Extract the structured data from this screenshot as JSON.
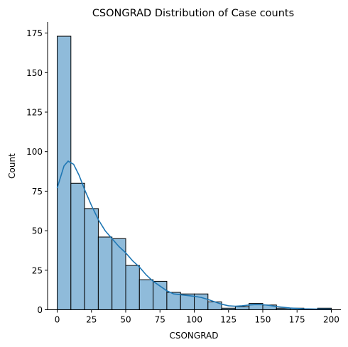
{
  "chart_data": {
    "type": "bar",
    "title": "CSONGRAD Distribution of Case counts",
    "xlabel": "CSONGRAD",
    "ylabel": "Count",
    "xlim": [
      -7,
      207
    ],
    "ylim": [
      0,
      182
    ],
    "xticks": [
      0,
      25,
      50,
      75,
      100,
      125,
      150,
      175,
      200
    ],
    "yticks": [
      0,
      25,
      50,
      75,
      100,
      125,
      150,
      175
    ],
    "bin_edges": [
      0,
      10,
      20,
      30,
      40,
      50,
      60,
      70,
      80,
      90,
      100,
      110,
      120,
      130,
      140,
      150,
      160,
      170,
      180,
      190,
      200
    ],
    "values": [
      173,
      80,
      64,
      46,
      45,
      28,
      19,
      18,
      11,
      10,
      10,
      5,
      1,
      2,
      4,
      3,
      1,
      1,
      0,
      1
    ],
    "kde": {
      "x": [
        0,
        5,
        8,
        12,
        16,
        20,
        25,
        30,
        35,
        40,
        45,
        50,
        55,
        60,
        65,
        70,
        75,
        80,
        85,
        90,
        95,
        100,
        105,
        110,
        115,
        120,
        125,
        130,
        135,
        140,
        145,
        150,
        155,
        160,
        170,
        180,
        190,
        200
      ],
      "y": [
        77,
        91,
        94,
        92,
        85,
        76,
        66,
        57,
        50,
        45,
        40,
        36,
        31,
        27,
        22,
        18,
        15,
        12,
        10,
        9.5,
        9,
        8.5,
        7.8,
        6.5,
        5,
        3.5,
        2.5,
        2.2,
        2.5,
        3,
        3.3,
        3.2,
        2.7,
        2,
        1.1,
        0.6,
        0.4,
        0.3
      ]
    },
    "grid": false,
    "legend": "none"
  }
}
